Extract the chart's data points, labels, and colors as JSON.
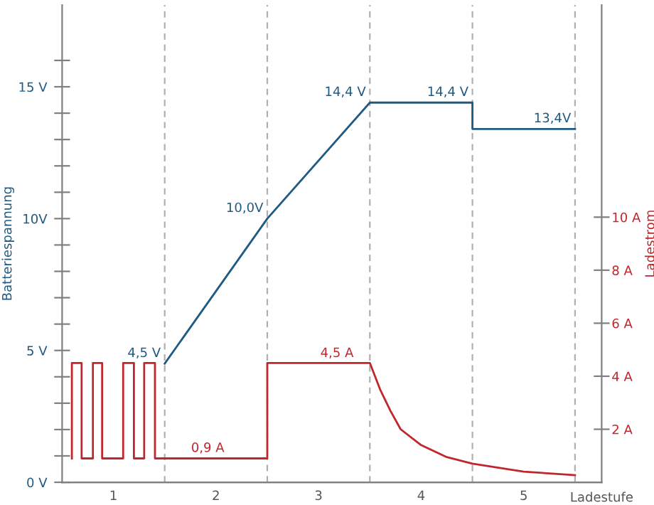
{
  "chart_data": {
    "type": "line",
    "xlabel": "Ladestufe",
    "ylabel": "Batteriespannung",
    "y2label": "Ladestrom",
    "xlim": [
      0.5,
      5.76
    ],
    "xticks": [
      {
        "value": 1,
        "label": "1"
      },
      {
        "value": 2,
        "label": "2"
      },
      {
        "value": 3,
        "label": "3"
      },
      {
        "value": 4,
        "label": "4"
      },
      {
        "value": 5,
        "label": "5"
      }
    ],
    "ylim": [
      0,
      18.1
    ],
    "yticks": [
      {
        "value": 0,
        "label": "0 V"
      },
      {
        "value": 1,
        "label": null
      },
      {
        "value": 2,
        "label": null
      },
      {
        "value": 3,
        "label": null
      },
      {
        "value": 4,
        "label": null
      },
      {
        "value": 5,
        "label": "5 V"
      },
      {
        "value": 6,
        "label": null
      },
      {
        "value": 7,
        "label": null
      },
      {
        "value": 8,
        "label": null
      },
      {
        "value": 9,
        "label": null
      },
      {
        "value": 10,
        "label": "10V"
      },
      {
        "value": 11,
        "label": null
      },
      {
        "value": 12,
        "label": null
      },
      {
        "value": 13,
        "label": null
      },
      {
        "value": 14,
        "label": null
      },
      {
        "value": 15,
        "label": "15 V"
      },
      {
        "value": 16,
        "label": null
      }
    ],
    "y2lim": [
      0,
      18.0
    ],
    "y2ticks": [
      {
        "value": 2,
        "label": "2 A"
      },
      {
        "value": 4,
        "label": "4 A"
      },
      {
        "value": 6,
        "label": "6 A"
      },
      {
        "value": 8,
        "label": "8 A"
      },
      {
        "value": 10,
        "label": "10 A"
      }
    ],
    "series": [
      {
        "color": "#1f5a82",
        "x": [
          1.5,
          2.5,
          3.5,
          4.5,
          4.5,
          5.5
        ],
        "values": [
          4.5,
          10.0,
          14.4,
          14.4,
          13.4,
          13.4
        ]
      },
      {
        "color": "#c0272d",
        "axis": "y2",
        "x": [
          0.595,
          0.595,
          0.69,
          0.69,
          0.8,
          0.8,
          0.89,
          0.89,
          1.095,
          1.095,
          1.2,
          1.2,
          1.3,
          1.3,
          1.405,
          1.405,
          1.5,
          2.5,
          2.5,
          3.5,
          3.6,
          3.7,
          3.8,
          4.0,
          4.25,
          4.5,
          5.0,
          5.5
        ],
        "values": [
          0.9,
          4.5,
          4.5,
          0.9,
          0.9,
          4.5,
          4.5,
          0.9,
          0.9,
          4.5,
          4.5,
          0.9,
          0.9,
          4.5,
          4.5,
          0.9,
          0.9,
          0.9,
          4.5,
          4.5,
          3.5,
          2.7,
          2.0,
          1.4,
          0.95,
          0.7,
          0.4,
          0.27
        ]
      }
    ],
    "ref_lines": [
      {
        "axis": "x",
        "value": 1.5,
        "color": "#b0b0b0",
        "line_style": "dashed"
      },
      {
        "axis": "x",
        "value": 2.5,
        "color": "#b0b0b0",
        "line_style": "dashed"
      },
      {
        "axis": "x",
        "value": 3.5,
        "color": "#b0b0b0",
        "line_style": "dashed"
      },
      {
        "axis": "x",
        "value": 4.5,
        "color": "#b0b0b0",
        "line_style": "dashed"
      },
      {
        "axis": "x",
        "value": 5.5,
        "color": "#b0b0b0",
        "line_style": "dashed"
      }
    ],
    "annotations": [
      {
        "text": "4,5 V",
        "x": 1.5,
        "y": 4.5
      },
      {
        "text": "10,0V",
        "x": 2.5,
        "y": 10.0
      },
      {
        "text": "14,4 V",
        "x": 3.5,
        "y": 14.4
      },
      {
        "text": "14,4 V",
        "x": 4.5,
        "y": 14.4
      },
      {
        "text": "13,4V",
        "x": 5.5,
        "y": 13.4
      },
      {
        "text": "0,9 A",
        "x": 2.12,
        "y": 0.9
      },
      {
        "text": "4,5 A",
        "x": 3.38,
        "y": 4.5
      }
    ],
    "grid": false,
    "legend": false
  }
}
